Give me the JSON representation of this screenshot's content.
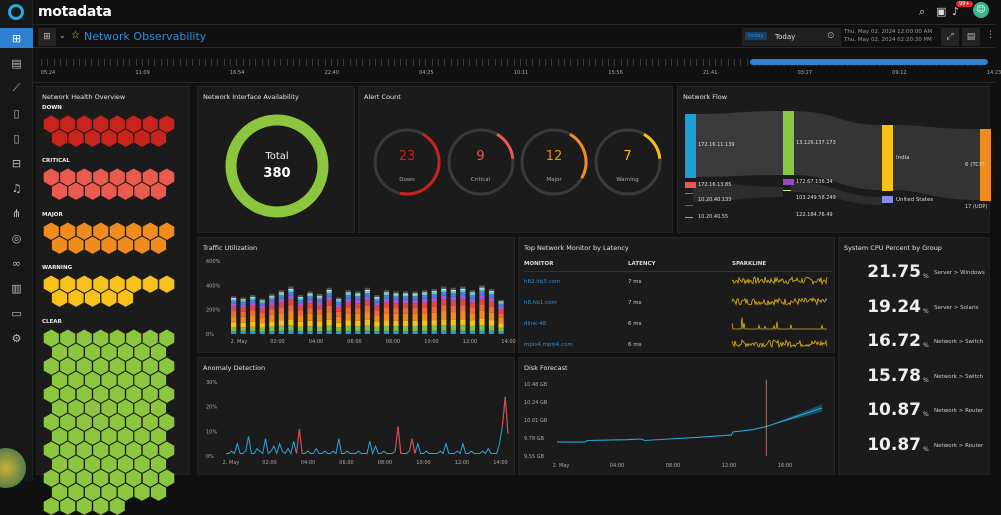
{
  "app": {
    "logo": "motadata"
  },
  "sidebar": {
    "items": [
      {
        "icon": "dashboard-grid-icon",
        "glyph": "⊞"
      },
      {
        "icon": "monitor-icon",
        "glyph": "▤"
      },
      {
        "icon": "chart-icon",
        "glyph": "⟋"
      },
      {
        "icon": "document-icon",
        "glyph": "▯"
      },
      {
        "icon": "list-document-icon",
        "glyph": "▯"
      },
      {
        "icon": "network-device-icon",
        "glyph": "⊟"
      },
      {
        "icon": "bell-icon",
        "glyph": "♫"
      },
      {
        "icon": "topology-icon",
        "glyph": "⋔"
      },
      {
        "icon": "radar-icon",
        "glyph": "◎"
      },
      {
        "icon": "binoculars-icon",
        "glyph": "∞"
      },
      {
        "icon": "report-icon",
        "glyph": "▥"
      },
      {
        "icon": "file-icon",
        "glyph": "▭"
      },
      {
        "icon": "settings-icon",
        "glyph": "⚙"
      }
    ]
  },
  "header": {
    "notification_badge": "99+",
    "avatar": "user-avatar"
  },
  "dashboard": {
    "title": "Network Observability",
    "range_tag": "today",
    "range_value": "Today",
    "start": "Thu, May 02, 2024 12:00:00 AM",
    "end": "Thu, May 02, 2024 02:20:30 PM"
  },
  "timeline": {
    "labels": [
      "05:24",
      "11:09",
      "16:54",
      "22:40",
      "04:25",
      "10:11",
      "15:56",
      "21:41",
      "03:27",
      "09:12",
      "14:23"
    ],
    "selection_pct": [
      74,
      100
    ]
  },
  "health": {
    "title": "Network Health Overview",
    "groups": [
      {
        "label": "DOWN",
        "count": 15,
        "color": "#c9231d"
      },
      {
        "label": "CRITICAL",
        "count": 15,
        "color": "#ea5a4e"
      },
      {
        "label": "MAJOR",
        "count": 15,
        "color": "#f08c1e"
      },
      {
        "label": "WARNING",
        "count": 13,
        "color": "#f6c21a"
      },
      {
        "label": "CLEAR",
        "count": 95,
        "color": "#8cc63f"
      }
    ]
  },
  "availability": {
    "title": "Network Interface Availability",
    "total_label": "Total",
    "total": "380",
    "color": "#8cc63f"
  },
  "alerts": {
    "title": "Alert Count",
    "items": [
      {
        "value": "23",
        "label": "Down",
        "color": "#c9231d",
        "fraction": 0.45
      },
      {
        "value": "9",
        "label": "Critical",
        "color": "#ea5a4e",
        "fraction": 0.15
      },
      {
        "value": "12",
        "label": "Major",
        "color": "#f08c1e",
        "fraction": 0.25
      },
      {
        "value": "7",
        "label": "Warning",
        "color": "#f6c21a",
        "fraction": 0.15
      }
    ]
  },
  "flow": {
    "title": "Network Flow",
    "sources": [
      "172.16.11.139",
      "172.16.13.85",
      "10.20.40.133",
      "10.20.40.55"
    ],
    "destinations": [
      "13.126.137.173",
      "172.67.136.34",
      "103.249.58.249",
      "122.184.76.49"
    ],
    "countries": [
      "India",
      "United States"
    ],
    "protocols": [
      "6 (TCP)",
      "17 (UDP)"
    ]
  },
  "traffic": {
    "title": "Traffic Utilization"
  },
  "latency": {
    "title": "Top Network Monitor by Latency",
    "columns": [
      "MONITOR",
      "LATENCY",
      "SPARKLINE"
    ],
    "rows": [
      {
        "monitor": "h82.hb3.com",
        "latency": "7 ms",
        "style": "dense"
      },
      {
        "monitor": "h8.hb1.com",
        "latency": "7 ms",
        "style": "dense"
      },
      {
        "monitor": "dlink-48",
        "latency": "6 ms",
        "style": "sparse"
      },
      {
        "monitor": "mpls4.mpls4.com",
        "latency": "6 ms",
        "style": "dense"
      }
    ]
  },
  "cpu": {
    "title": "System CPU Percent by Group",
    "unit": "%",
    "rows": [
      {
        "value": "21.75",
        "group": "Server > Windows"
      },
      {
        "value": "19.24",
        "group": "Server > Solaris"
      },
      {
        "value": "16.72",
        "group": "Network > Switch"
      },
      {
        "value": "15.78",
        "group": "Network > Switch"
      },
      {
        "value": "10.87",
        "group": "Network > Router"
      },
      {
        "value": "10.87",
        "group": "Network > Router"
      }
    ]
  },
  "anomaly": {
    "title": "Anomaly Detection"
  },
  "disk": {
    "title": "Disk Forecast"
  },
  "chart_data": [
    {
      "type": "bar",
      "title": "Traffic Utilization",
      "stacked": true,
      "ylim": [
        0,
        600
      ],
      "yticks": [
        "0%",
        "200%",
        "400%",
        "600%"
      ],
      "xticks": [
        "2. May",
        "02:00",
        "04:00",
        "06:00",
        "08:00",
        "10:00",
        "12:00",
        "14:00"
      ],
      "totals": [
        310,
        300,
        320,
        290,
        330,
        360,
        390,
        320,
        350,
        330,
        380,
        300,
        360,
        350,
        380,
        320,
        360,
        350,
        350,
        350,
        360,
        370,
        390,
        380,
        390,
        360,
        400,
        370,
        280
      ],
      "layer_colors": [
        "#1f9ed6",
        "#7bc043",
        "#f6c21a",
        "#f08c1e",
        "#ee6a3a",
        "#e04848",
        "#a05bd6",
        "#4a7ee0",
        "#59d6c8",
        "#dddddd",
        "#555555"
      ]
    },
    {
      "type": "line",
      "title": "Anomaly Detection",
      "ylim": [
        0,
        30
      ],
      "yticks": [
        "0%",
        "10%",
        "20%",
        "30%"
      ],
      "xticks": [
        "2. May",
        "02:00",
        "04:00",
        "06:00",
        "08:00",
        "10:00",
        "12:00",
        "14:00"
      ],
      "values": [
        1,
        1,
        2,
        1,
        5,
        1,
        1,
        2,
        8,
        1,
        1,
        3,
        2,
        1,
        7,
        1,
        2,
        4,
        1,
        5,
        2,
        1,
        3,
        1,
        6,
        1,
        11,
        1,
        1,
        2,
        1,
        1,
        3,
        1,
        1,
        2,
        1,
        1,
        2,
        1,
        7,
        1,
        1,
        2,
        1,
        1,
        1,
        2,
        1,
        1,
        1,
        6,
        1,
        4,
        1,
        1,
        2,
        1,
        1,
        1,
        2,
        12,
        1,
        1,
        1,
        2,
        7,
        1,
        5,
        1,
        1,
        2,
        1,
        1,
        1,
        1,
        2,
        1,
        5,
        1,
        1,
        1,
        2,
        1,
        5,
        1,
        1,
        2,
        1,
        1,
        1,
        2,
        1,
        3,
        1,
        1,
        1,
        5,
        12,
        24,
        9
      ],
      "anomaly_indexes": [
        26,
        61,
        66,
        99
      ],
      "colors": {
        "normal": "#2aa8d8",
        "anomaly": "#e04848"
      }
    },
    {
      "type": "line",
      "title": "Disk Forecast",
      "ylim": [
        9.55,
        10.48
      ],
      "yticks": [
        "9.55 GB",
        "9.78 GB",
        "10.01 GB",
        "10.24 GB",
        "10.48 GB"
      ],
      "xticks": [
        "2. May",
        "04:00",
        "08:00",
        "12:00",
        "16:00"
      ],
      "x_hours": [
        0,
        2,
        2.2,
        5,
        6,
        6.3,
        8,
        10,
        11.5,
        12.5,
        12.6,
        14,
        15,
        16,
        17,
        18,
        19
      ],
      "values": [
        9.73,
        9.73,
        9.75,
        9.76,
        9.77,
        9.75,
        9.77,
        9.79,
        9.81,
        9.82,
        9.86,
        9.89,
        9.93,
        9.99,
        10.05,
        10.11,
        10.17
      ],
      "forecast_from_hour": 15,
      "color": "#2aa8d8"
    }
  ]
}
